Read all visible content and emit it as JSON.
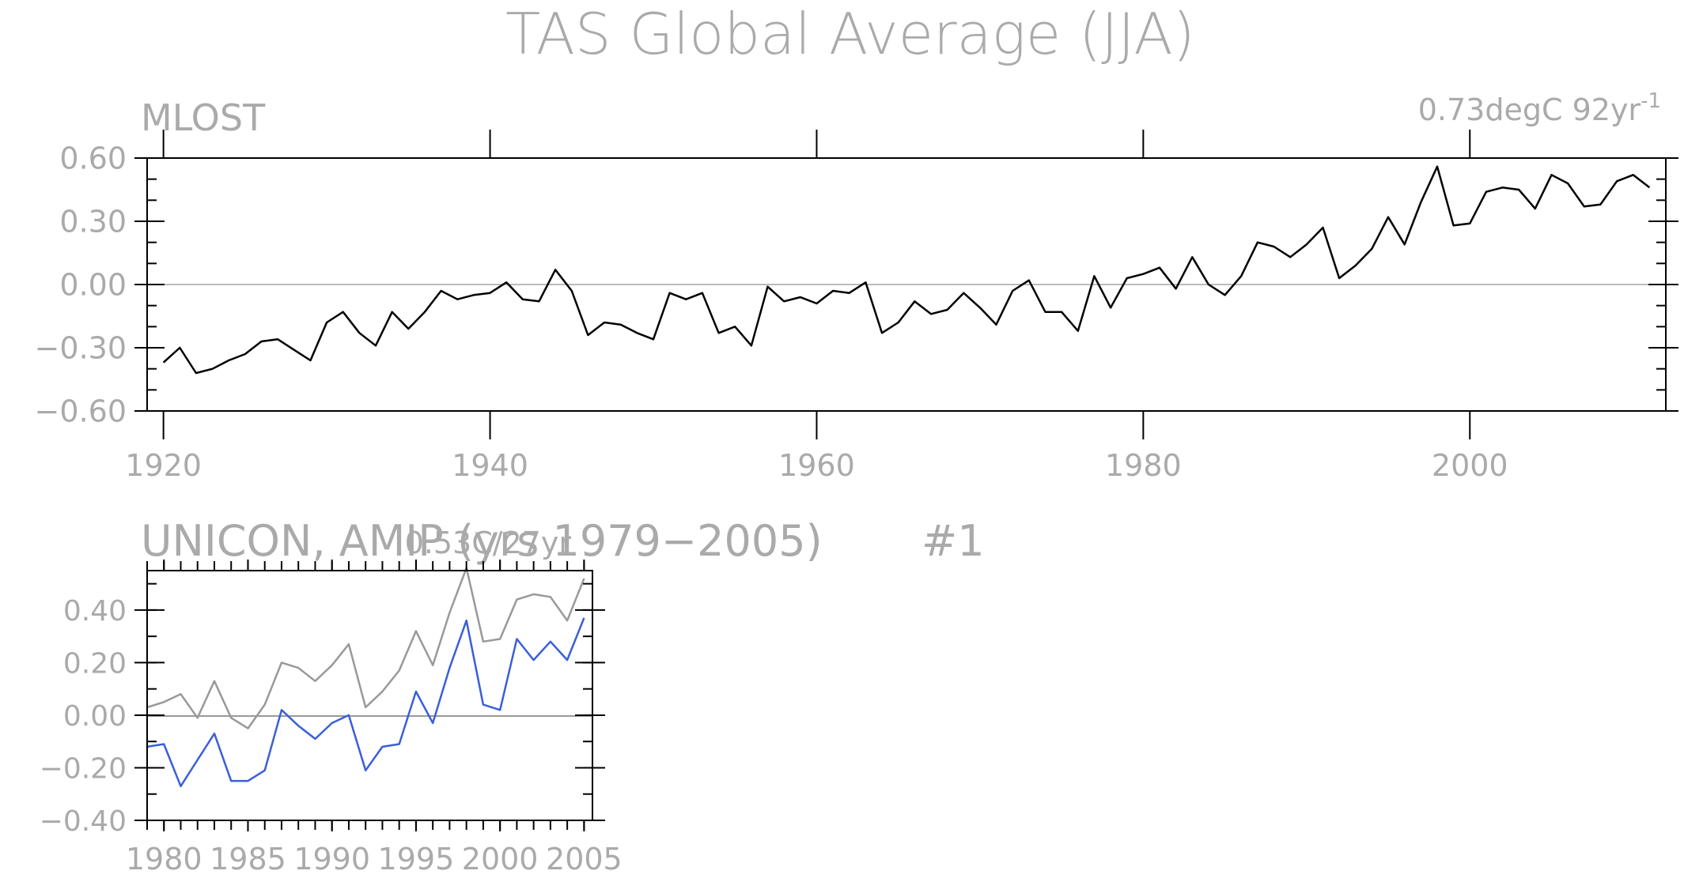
{
  "title": "TAS Global Average (JJA)",
  "chart_data": [
    {
      "type": "line",
      "panel_label": "MLOST",
      "trend_text": "0.73degC 92yr",
      "trend_superscript": "-1",
      "x_ticks": [
        "1920",
        "1940",
        "1960",
        "1980",
        "2000"
      ],
      "y_ticks": [
        "0.60",
        "0.30",
        "0.00",
        "−0.30",
        "−0.60"
      ],
      "xlim": [
        1919,
        2012
      ],
      "ylim": [
        -0.6,
        0.6
      ],
      "zero_line": true,
      "series": [
        {
          "color": "#000000",
          "x": [
            1920,
            1921,
            1922,
            1923,
            1924,
            1925,
            1926,
            1927,
            1928,
            1929,
            1930,
            1931,
            1932,
            1933,
            1934,
            1935,
            1936,
            1937,
            1938,
            1939,
            1940,
            1941,
            1942,
            1943,
            1944,
            1945,
            1946,
            1947,
            1948,
            1949,
            1950,
            1951,
            1952,
            1953,
            1954,
            1955,
            1956,
            1957,
            1958,
            1959,
            1960,
            1961,
            1962,
            1963,
            1964,
            1965,
            1966,
            1967,
            1968,
            1969,
            1970,
            1971,
            1972,
            1973,
            1974,
            1975,
            1976,
            1977,
            1978,
            1979,
            1980,
            1981,
            1982,
            1983,
            1984,
            1985,
            1986,
            1987,
            1988,
            1989,
            1990,
            1991,
            1992,
            1993,
            1994,
            1995,
            1996,
            1997,
            1998,
            1999,
            2000,
            2001,
            2002,
            2003,
            2004,
            2005,
            2006,
            2007,
            2008,
            2009,
            2010,
            2011
          ],
          "y": [
            -0.37,
            -0.3,
            -0.42,
            -0.4,
            -0.36,
            -0.33,
            -0.27,
            -0.26,
            -0.31,
            -0.36,
            -0.18,
            -0.13,
            -0.23,
            -0.29,
            -0.13,
            -0.21,
            -0.13,
            -0.03,
            -0.07,
            -0.05,
            -0.04,
            0.01,
            -0.07,
            -0.08,
            0.07,
            -0.03,
            -0.24,
            -0.18,
            -0.19,
            -0.23,
            -0.26,
            -0.04,
            -0.07,
            -0.04,
            -0.23,
            -0.2,
            -0.29,
            -0.01,
            -0.08,
            -0.06,
            -0.09,
            -0.03,
            -0.04,
            0.01,
            -0.23,
            -0.18,
            -0.08,
            -0.14,
            -0.12,
            -0.04,
            -0.11,
            -0.19,
            -0.03,
            0.02,
            -0.13,
            -0.13,
            -0.22,
            0.04,
            -0.11,
            0.03,
            0.05,
            0.08,
            -0.02,
            0.13,
            0.0,
            -0.05,
            0.04,
            0.2,
            0.18,
            0.13,
            0.19,
            0.27,
            0.03,
            0.09,
            0.17,
            0.32,
            0.19,
            0.39,
            0.56,
            0.28,
            0.29,
            0.44,
            0.46,
            0.45,
            0.36,
            0.52,
            0.48,
            0.37,
            0.38,
            0.49,
            0.52,
            0.46
          ]
        }
      ]
    },
    {
      "type": "line",
      "panel_label": "UNICON, AMIP (yrs 1979−2005)",
      "panel_number": "#1",
      "trend_text": "0.53C/27yr",
      "x_ticks": [
        "1980",
        "1985",
        "1990",
        "1995",
        "2000",
        "2005"
      ],
      "y_ticks": [
        "0.40",
        "0.20",
        "0.00",
        "−0.20",
        "−0.40"
      ],
      "xlim": [
        1979,
        2005.5
      ],
      "ylim": [
        -0.4,
        0.55
      ],
      "zero_line": true,
      "series": [
        {
          "color": "#999999",
          "x": [
            1979,
            1980,
            1981,
            1982,
            1983,
            1984,
            1985,
            1986,
            1987,
            1988,
            1989,
            1990,
            1991,
            1992,
            1993,
            1994,
            1995,
            1996,
            1997,
            1998,
            1999,
            2000,
            2001,
            2002,
            2003,
            2004,
            2005
          ],
          "y": [
            0.03,
            0.05,
            0.08,
            -0.01,
            0.13,
            -0.01,
            -0.05,
            0.04,
            0.2,
            0.18,
            0.13,
            0.19,
            0.27,
            0.03,
            0.09,
            0.17,
            0.32,
            0.19,
            0.39,
            0.56,
            0.28,
            0.29,
            0.44,
            0.46,
            0.45,
            0.36,
            0.52
          ]
        },
        {
          "color": "#3a5fd8",
          "x": [
            1979,
            1980,
            1981,
            1982,
            1983,
            1984,
            1985,
            1986,
            1987,
            1988,
            1989,
            1990,
            1991,
            1992,
            1993,
            1994,
            1995,
            1996,
            1997,
            1998,
            1999,
            2000,
            2001,
            2002,
            2003,
            2004,
            2005
          ],
          "y": [
            -0.12,
            -0.11,
            -0.27,
            -0.17,
            -0.07,
            -0.25,
            -0.25,
            -0.21,
            0.02,
            -0.04,
            -0.09,
            -0.03,
            0.0,
            -0.21,
            -0.12,
            -0.11,
            0.09,
            -0.03,
            0.18,
            0.36,
            0.04,
            0.02,
            0.29,
            0.21,
            0.28,
            0.21,
            0.37
          ]
        }
      ]
    }
  ]
}
